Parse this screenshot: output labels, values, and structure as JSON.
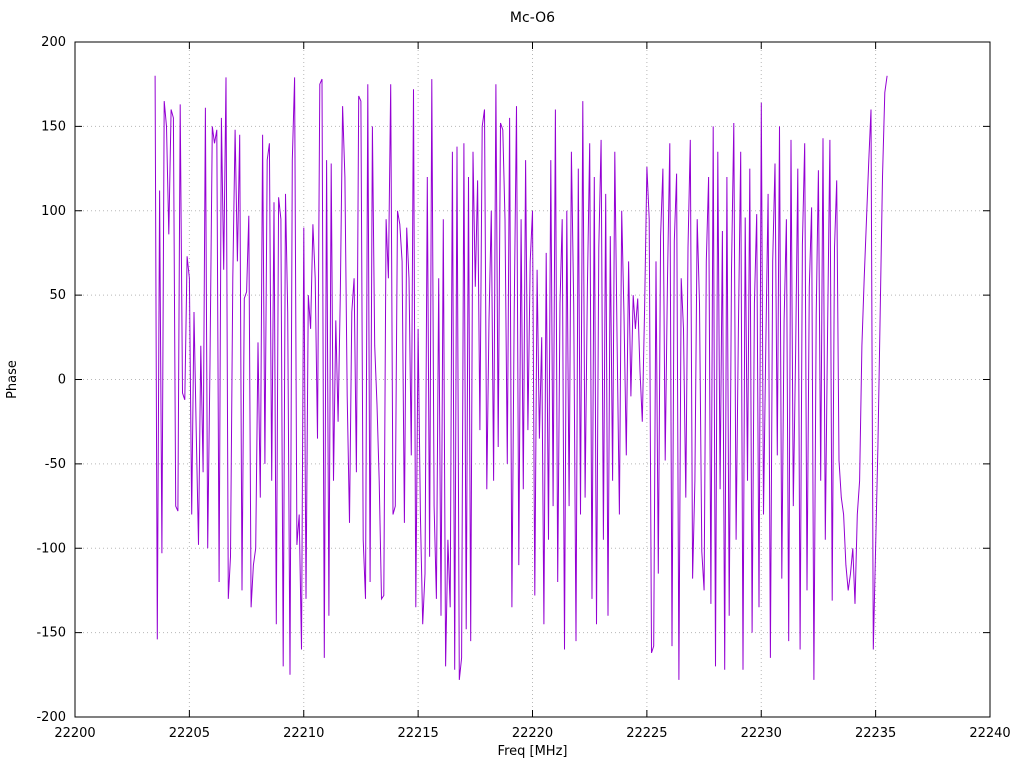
{
  "title": "Mc-O6",
  "colors": {
    "line": "#9400d3",
    "grid": "#b8b8b8",
    "axis": "#000000",
    "background": "#ffffff"
  },
  "chart_data": {
    "type": "line",
    "title": "Mc-O6",
    "xlabel": "Freq [MHz]",
    "ylabel": "Phase",
    "xlim": [
      22200,
      22240
    ],
    "ylim": [
      -200,
      200
    ],
    "xticks": [
      22200,
      22205,
      22210,
      22215,
      22220,
      22225,
      22230,
      22235,
      22240
    ],
    "yticks": [
      -200,
      -150,
      -100,
      -50,
      0,
      50,
      100,
      150,
      200
    ],
    "grid": true,
    "legend": "none",
    "series_name": "Phase",
    "x_start": 22203.5,
    "x_step": 0.1,
    "values": [
      180,
      -154,
      112,
      -103,
      165,
      150,
      86,
      160,
      155,
      -75,
      -78,
      163,
      -8,
      -12,
      73,
      60,
      -80,
      40,
      -30,
      -98,
      20,
      -55,
      161,
      -100,
      10,
      150,
      140,
      148,
      -120,
      155,
      65,
      179,
      -130,
      -105,
      60,
      148,
      70,
      145,
      -125,
      48,
      52,
      97,
      -135,
      -110,
      -100,
      22,
      -70,
      145,
      -50,
      130,
      140,
      -60,
      105,
      -145,
      108,
      95,
      -170,
      110,
      40,
      -175,
      130,
      179,
      -98,
      -80,
      -160,
      90,
      -130,
      50,
      30,
      92,
      60,
      -35,
      175,
      178,
      -165,
      130,
      -140,
      128,
      -60,
      35,
      -25,
      50,
      162,
      120,
      -10,
      -85,
      40,
      60,
      -55,
      168,
      165,
      -95,
      -130,
      175,
      -120,
      150,
      20,
      -15,
      -60,
      -130,
      -128,
      95,
      60,
      175,
      -80,
      -75,
      100,
      92,
      70,
      -85,
      90,
      60,
      -45,
      172,
      -135,
      30,
      -80,
      -145,
      -115,
      120,
      -105,
      178,
      -75,
      -130,
      60,
      -140,
      95,
      -170,
      -95,
      -135,
      135,
      -172,
      138,
      -178,
      -165,
      140,
      -148,
      120,
      -155,
      135,
      55,
      118,
      -30,
      150,
      160,
      -65,
      35,
      100,
      -60,
      175,
      -40,
      152,
      148,
      95,
      -50,
      155,
      -135,
      40,
      162,
      -110,
      95,
      -65,
      130,
      -30,
      70,
      100,
      -128,
      65,
      -35,
      25,
      -145,
      75,
      -95,
      130,
      -75,
      160,
      -120,
      45,
      95,
      -160,
      100,
      -75,
      135,
      45,
      -155,
      125,
      -80,
      165,
      -70,
      55,
      140,
      -130,
      120,
      -145,
      78,
      142,
      -95,
      110,
      -140,
      85,
      -60,
      135,
      22,
      -80,
      100,
      38,
      -45,
      70,
      -10,
      50,
      30,
      48,
      5,
      -25,
      42,
      126,
      95,
      -162,
      -158,
      70,
      -115,
      85,
      125,
      -48,
      60,
      140,
      -158,
      82,
      122,
      -178,
      60,
      30,
      -70,
      78,
      142,
      -118,
      -60,
      95,
      45,
      -102,
      -125,
      70,
      120,
      -133,
      150,
      -170,
      135,
      -65,
      88,
      -172,
      120,
      -140,
      65,
      152,
      -95,
      30,
      135,
      -172,
      96,
      -60,
      125,
      -150,
      45,
      98,
      -135,
      164,
      -80,
      20,
      110,
      -165,
      70,
      128,
      -45,
      150,
      -118,
      35,
      95,
      -155,
      142,
      -75,
      15,
      125,
      -160,
      80,
      140,
      -125,
      55,
      102,
      -178,
      38,
      124,
      -60,
      143,
      -95,
      30,
      142,
      -131,
      78,
      118,
      -48,
      -70,
      -80,
      -110,
      -125,
      -115,
      -100,
      -133,
      -80,
      -60,
      20,
      60,
      95,
      130,
      160,
      -160,
      -100,
      -40,
      40,
      120,
      170,
      180
    ]
  }
}
